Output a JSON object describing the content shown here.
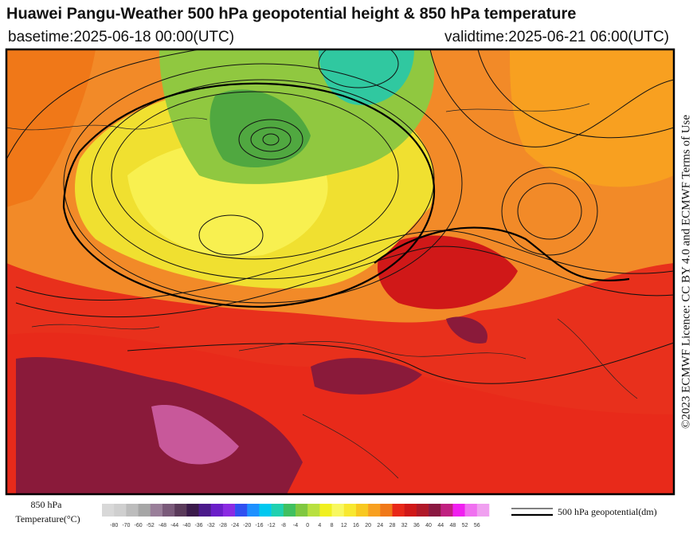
{
  "header": {
    "title": "Huawei Pangu-Weather 500 hPa geopotential height & 850 hPa temperature",
    "basetime": "basetime:2025-06-18 00:00(UTC)",
    "validtime": "validtime:2025-06-21 06:00(UTC)"
  },
  "licence": "©2023 ECMWF Licence: CC BY 4.0 and ECMWF Terms of Use",
  "colorbar": {
    "title_line1": "850 hPa",
    "title_line2": "Temperature(°C)",
    "ticks": [
      -80,
      -70,
      -60,
      -52,
      -48,
      -44,
      -40,
      -36,
      -32,
      -28,
      -24,
      -20,
      -16,
      -12,
      -8,
      -4,
      0,
      4,
      8,
      12,
      16,
      20,
      24,
      28,
      32,
      36,
      40,
      44,
      48,
      52,
      56
    ],
    "colors": [
      "#d8d8d8",
      "#cfcfcf",
      "#bcbcbc",
      "#a6a6a6",
      "#9a7f9a",
      "#7a5a7a",
      "#5a3a5a",
      "#3a1a4a",
      "#4b1a8a",
      "#6a1ec8",
      "#8a2be2",
      "#3050f0",
      "#1e90ff",
      "#00c8f0",
      "#20d0b0",
      "#40c060",
      "#80c840",
      "#b8e040",
      "#f0f020",
      "#f8f860",
      "#f8e830",
      "#f8c820",
      "#f8a020",
      "#f07818",
      "#e82818",
      "#d01818",
      "#b01828",
      "#8a1840",
      "#c02080",
      "#f020f0",
      "#f070f0",
      "#f0a0f0"
    ]
  },
  "legend": {
    "label": "500 hPa geopotential(dm)"
  }
}
